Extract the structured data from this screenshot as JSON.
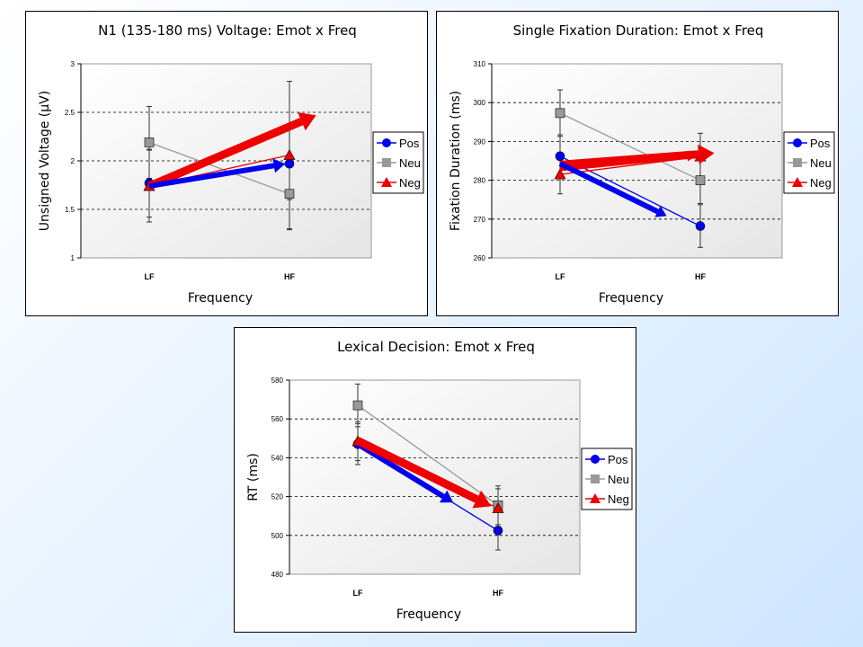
{
  "chart_data": [
    {
      "type": "line",
      "title": "N1 (135-180 ms) Voltage:  Emot x Freq",
      "xlabel": "Frequency",
      "ylabel": "Unsigned Voltage (μV)",
      "categories": [
        "LF",
        "HF"
      ],
      "ylim": [
        1,
        3
      ],
      "yticks": [
        "1",
        "1.5",
        "2",
        "2.5",
        "3"
      ],
      "grid": true,
      "legend_position": "right",
      "series": [
        {
          "name": "Pos",
          "values": [
            1.77,
            1.97
          ],
          "error": [
            0.35,
            0.37
          ],
          "color": "#0000ee",
          "marker": "circle"
        },
        {
          "name": "Neu",
          "values": [
            2.19,
            1.66
          ],
          "error": [
            0.37,
            0.37
          ],
          "color": "#999999",
          "marker": "square"
        },
        {
          "name": "Neg",
          "values": [
            1.74,
            2.06
          ],
          "error": [
            0.37,
            0.76
          ],
          "color": "#ee0000",
          "marker": "triangle"
        }
      ]
    },
    {
      "type": "line",
      "title": "Single Fixation Duration:  Emot x Freq",
      "xlabel": "Frequency",
      "ylabel": "Fixation Duration (ms)",
      "categories": [
        "LF",
        "HF"
      ],
      "ylim": [
        260,
        310
      ],
      "yticks": [
        "260",
        "270",
        "280",
        "290",
        "300",
        "310"
      ],
      "grid": true,
      "legend_position": "right",
      "series": [
        {
          "name": "Pos",
          "values": [
            286.2,
            268.2
          ],
          "error": [
            5.5,
            5.5
          ],
          "color": "#0000ee",
          "marker": "circle"
        },
        {
          "name": "Neu",
          "values": [
            297.3,
            280.0
          ],
          "error": [
            6.0,
            6.0
          ],
          "color": "#999999",
          "marker": "square"
        },
        {
          "name": "Neg",
          "values": [
            281.5,
            286.1
          ],
          "error": [
            5.0,
            6.0
          ],
          "color": "#ee0000",
          "marker": "triangle"
        }
      ]
    },
    {
      "type": "line",
      "title": "Lexical Decision:  Emot x Freq",
      "xlabel": "Frequency",
      "ylabel": "RT (ms)",
      "categories": [
        "LF",
        "HF"
      ],
      "ylim": [
        480,
        580
      ],
      "yticks": [
        "480",
        "500",
        "520",
        "540",
        "560",
        "580"
      ],
      "grid": true,
      "legend_position": "right",
      "series": [
        {
          "name": "Pos",
          "values": [
            547.0,
            502.5
          ],
          "error": [
            10.5,
            10.0
          ],
          "color": "#0000ee",
          "marker": "circle"
        },
        {
          "name": "Neu",
          "values": [
            567.0,
            515.5
          ],
          "error": [
            11.0,
            10.0
          ],
          "color": "#999999",
          "marker": "square"
        },
        {
          "name": "Neg",
          "values": [
            548.5,
            514.0
          ],
          "error": [
            10.0,
            10.0
          ],
          "color": "#ee0000",
          "marker": "triangle"
        }
      ]
    }
  ]
}
